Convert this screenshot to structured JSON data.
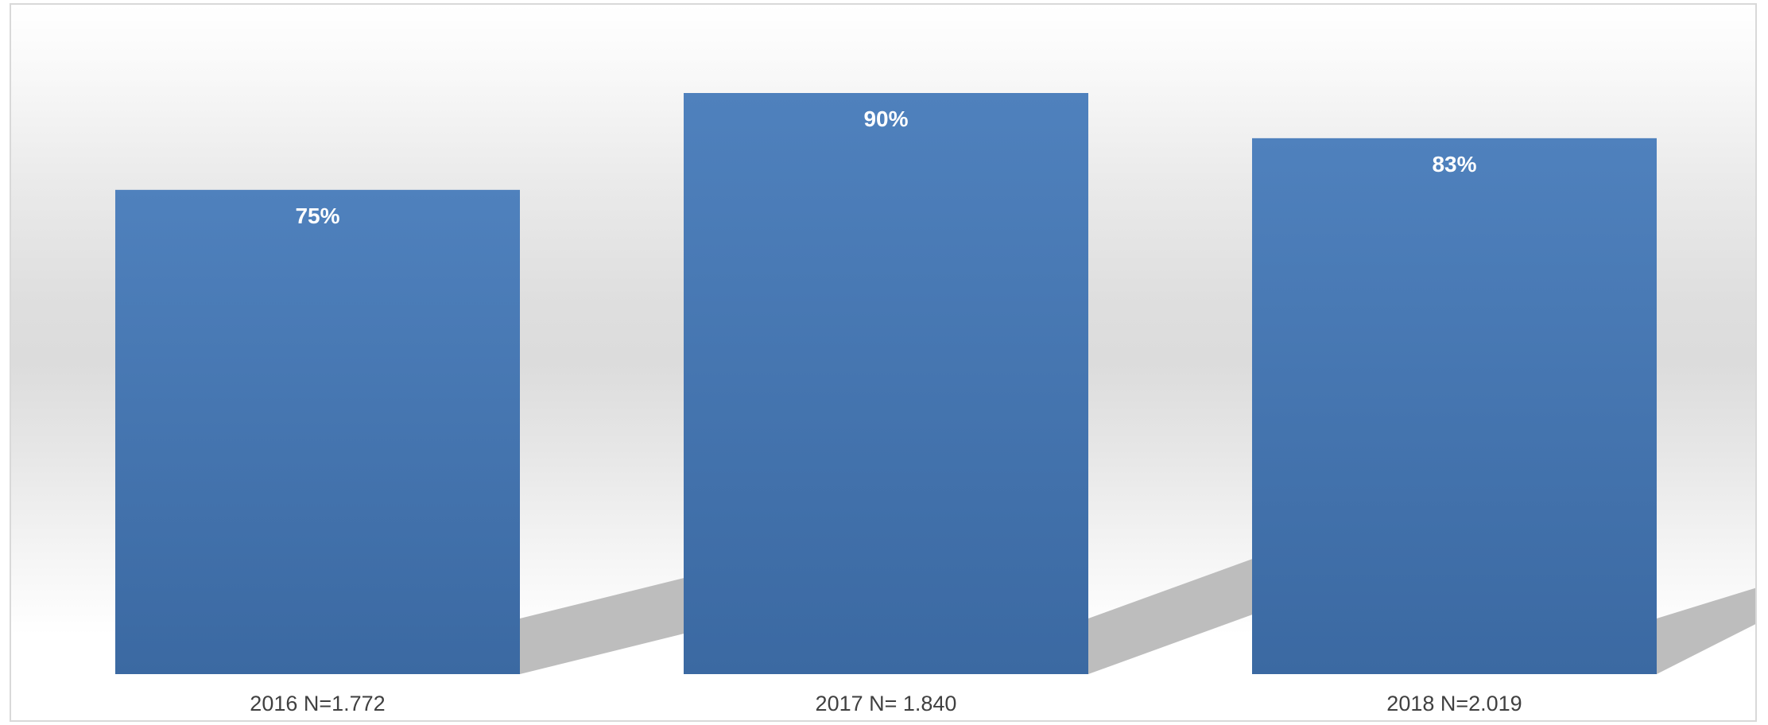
{
  "chart_data": {
    "type": "bar",
    "categories": [
      "2016 N=1.772",
      "2017 N= 1.840",
      "2018 N=2.019"
    ],
    "values": [
      75,
      90,
      83
    ],
    "data_labels": [
      "75%",
      "90%",
      "83%"
    ],
    "title": "",
    "xlabel": "",
    "ylabel": "",
    "ylim": [
      0,
      100
    ],
    "grid": false,
    "legend": "none",
    "colors": {
      "bar_top": "#4f81bd",
      "bar_bottom": "#3b69a2",
      "label": "#ffffff",
      "category_text": "#404040",
      "shadow": "#bdbdbd"
    }
  }
}
